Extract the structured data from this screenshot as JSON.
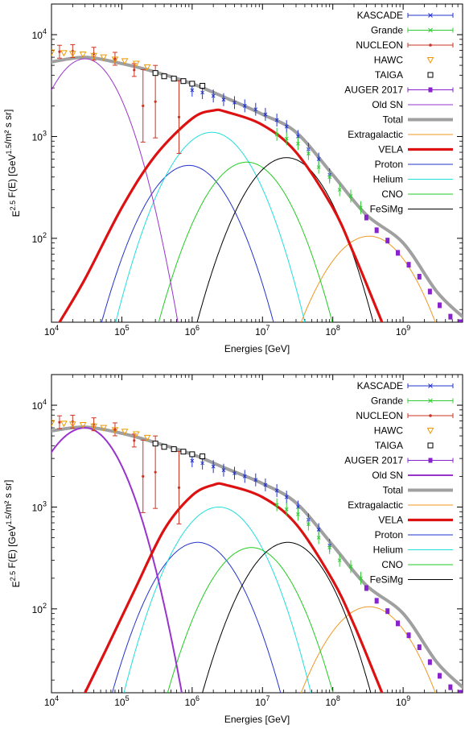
{
  "colors": {
    "KASCADE": "#2233cc",
    "Grande": "#33cc33",
    "NUCLEON": "#cc3322",
    "HAWC": "#ee9900",
    "TAIGA": "#000000",
    "AUGER 2017": "#8822cc",
    "Old SN": "#9933cc",
    "Total": "#a0a0a0",
    "Extragalactic": "#ee9922",
    "VELA": "#dd1111",
    "Proton": "#2233cc",
    "Helium": "#22dddd",
    "CNO": "#22cc22",
    "FeSiMg": "#000000"
  },
  "chart_data": [
    {
      "type": "line",
      "xlabel": "Energies [GeV]",
      "ylabel": "E^{2.5} F(E) [GeV^{1.5}/m² s sr]",
      "x_scale": "log",
      "y_scale": "log",
      "xlim": [
        10000,
        7000000000
      ],
      "ylim": [
        15,
        20000
      ],
      "x_ticks": [
        "10^4",
        "10^5",
        "10^6",
        "10^7",
        "10^8",
        "10^9"
      ],
      "y_ticks": [
        "10^2",
        "10^3",
        "10^4"
      ],
      "legend_position": "top-right",
      "legend": [
        "KASCADE",
        "Grande",
        "NUCLEON",
        "HAWC",
        "TAIGA",
        "AUGER 2017",
        "Old SN",
        "Total",
        "Extragalactic",
        "VELA",
        "Proton",
        "Helium",
        "CNO",
        "FeSiMg"
      ],
      "curves": [
        {
          "name": "Old SN",
          "peak_x": 30000,
          "peak_y": 5800,
          "left_slope": 0.22,
          "right_slope": 1.0,
          "width": 1.35
        },
        {
          "name": "Total",
          "points": [
            [
              10000,
              5400
            ],
            [
              30000,
              6000
            ],
            [
              100000,
              5200
            ],
            [
              300000,
              4300
            ],
            [
              1000000,
              3300
            ],
            [
              3000000,
              2400
            ],
            [
              10000000,
              1650
            ],
            [
              30000000,
              1100
            ],
            [
              100000000,
              420
            ],
            [
              300000000,
              170
            ],
            [
              1000000000,
              90
            ],
            [
              3000000000,
              30
            ],
            [
              7000000000,
              17
            ]
          ]
        },
        {
          "name": "Extragalactic",
          "peak_x": 330000000,
          "peak_y": 105,
          "left_slope": 0.55,
          "right_slope": 0.9,
          "width": 0.9
        },
        {
          "name": "VELA",
          "points": [
            [
              13000,
              15
            ],
            [
              30000,
              40
            ],
            [
              100000,
              200
            ],
            [
              300000,
              650
            ],
            [
              1000000,
              1500
            ],
            [
              2000000,
              1800
            ],
            [
              3000000,
              1750
            ],
            [
              10000000,
              1300
            ],
            [
              30000000,
              700
            ],
            [
              100000000,
              200
            ],
            [
              200000000,
              70
            ],
            [
              400000000,
              22
            ],
            [
              500000000,
              15
            ]
          ]
        },
        {
          "name": "Proton",
          "peak_x": 900000,
          "peak_y": 520,
          "left_slope": 0.55,
          "right_slope": 0.9,
          "width": 1.0
        },
        {
          "name": "Helium",
          "peak_x": 1900000,
          "peak_y": 1100,
          "left_slope": 0.55,
          "right_slope": 0.9,
          "width": 1.0
        },
        {
          "name": "CNO",
          "peak_x": 6000000,
          "peak_y": 560,
          "left_slope": 0.55,
          "right_slope": 0.9,
          "width": 1.0
        },
        {
          "name": "FeSiMg",
          "peak_x": 22000000,
          "peak_y": 620,
          "left_slope": 0.55,
          "right_slope": 0.9,
          "width": 1.0
        }
      ],
      "series": [
        {
          "name": "KASCADE",
          "points": [
            [
              1000000,
              2850
            ],
            [
              1400000,
              2700
            ],
            [
              2000000,
              2500
            ],
            [
              2800000,
              2300
            ],
            [
              4000000,
              2150
            ],
            [
              5600000,
              2000
            ],
            [
              8000000,
              1850
            ],
            [
              11000000,
              1650
            ],
            [
              16000000,
              1450
            ],
            [
              22000000,
              1250
            ],
            [
              32000000,
              1000
            ],
            [
              45000000,
              750
            ],
            [
              63000000,
              600
            ],
            [
              90000000,
              420
            ]
          ]
        },
        {
          "name": "Grande",
          "points": [
            [
              16000000,
              1050
            ],
            [
              22000000,
              950
            ],
            [
              32000000,
              850
            ],
            [
              45000000,
              680
            ],
            [
              63000000,
              500
            ],
            [
              90000000,
              400
            ],
            [
              125000000,
              300
            ],
            [
              180000000,
              260
            ],
            [
              250000000,
              200
            ]
          ]
        },
        {
          "name": "NUCLEON",
          "points": [
            [
              13000,
              6800
            ],
            [
              20000,
              6900
            ],
            [
              40000,
              6500
            ],
            [
              80000,
              5800
            ],
            [
              150000,
              4500
            ],
            [
              200000,
              2000
            ],
            [
              300000,
              2200
            ],
            [
              650000,
              1550
            ]
          ]
        },
        {
          "name": "HAWC",
          "points": [
            [
              10000,
              6700
            ],
            [
              15000,
              6600
            ],
            [
              20000,
              6500
            ],
            [
              28000,
              6400
            ],
            [
              40000,
              6200
            ],
            [
              55000,
              6000
            ],
            [
              80000,
              5700
            ],
            [
              110000,
              5500
            ],
            [
              160000,
              5200
            ],
            [
              230000,
              4800
            ]
          ]
        },
        {
          "name": "TAIGA",
          "points": [
            [
              300000,
              4200
            ],
            [
              400000,
              3900
            ],
            [
              550000,
              3700
            ],
            [
              750000,
              3500
            ],
            [
              1000000,
              3300
            ],
            [
              1400000,
              3150
            ]
          ]
        },
        {
          "name": "AUGER 2017",
          "points": [
            [
              300000000,
              160
            ],
            [
              420000000,
              120
            ],
            [
              600000000,
              95
            ],
            [
              840000000,
              72
            ],
            [
              1200000000,
              55
            ],
            [
              1700000000,
              42
            ],
            [
              2400000000,
              30
            ],
            [
              3300000000,
              22
            ],
            [
              4700000000,
              17
            ],
            [
              6500000000,
              15
            ]
          ]
        }
      ]
    },
    {
      "type": "line",
      "xlabel": "Energies [GeV]",
      "ylabel": "E^{2.5} F(E) [GeV^{1.5}/m² s sr]",
      "x_scale": "log",
      "y_scale": "log",
      "xlim": [
        10000,
        7000000000
      ],
      "ylim": [
        15,
        20000
      ],
      "x_ticks": [
        "10^4",
        "10^5",
        "10^6",
        "10^7",
        "10^8",
        "10^9"
      ],
      "y_ticks": [
        "10^2",
        "10^3",
        "10^4"
      ],
      "legend_position": "top-right",
      "legend": [
        "KASCADE",
        "Grande",
        "NUCLEON",
        "HAWC",
        "TAIGA",
        "AUGER 2017",
        "Old SN",
        "Total",
        "Extragalactic",
        "VELA",
        "Proton",
        "Helium",
        "CNO",
        "FeSiMg"
      ],
      "curves": [
        {
          "name": "Old SN",
          "peak_x": 30000,
          "peak_y": 6000,
          "left_slope": 0.22,
          "right_slope": 1.6,
          "width": 1.05
        },
        {
          "name": "Total",
          "points": [
            [
              10000,
              5600
            ],
            [
              30000,
              6100
            ],
            [
              100000,
              5300
            ],
            [
              300000,
              4300
            ],
            [
              1000000,
              3300
            ],
            [
              3000000,
              2400
            ],
            [
              10000000,
              1700
            ],
            [
              30000000,
              1100
            ],
            [
              100000000,
              420
            ],
            [
              300000000,
              170
            ],
            [
              1000000000,
              90
            ],
            [
              3000000000,
              30
            ],
            [
              7000000000,
              17
            ]
          ]
        },
        {
          "name": "Extragalactic",
          "peak_x": 330000000,
          "peak_y": 105,
          "left_slope": 0.55,
          "right_slope": 0.9,
          "width": 0.9
        },
        {
          "name": "VELA",
          "points": [
            [
              30000,
              15
            ],
            [
              60000,
              40
            ],
            [
              150000,
              150
            ],
            [
              400000,
              600
            ],
            [
              1000000,
              1300
            ],
            [
              2000000,
              1650
            ],
            [
              3000000,
              1650
            ],
            [
              10000000,
              1250
            ],
            [
              30000000,
              680
            ],
            [
              100000000,
              190
            ],
            [
              200000000,
              70
            ],
            [
              400000000,
              22
            ],
            [
              500000000,
              15
            ]
          ]
        },
        {
          "name": "Proton",
          "peak_x": 1200000,
          "peak_y": 450,
          "left_slope": 0.55,
          "right_slope": 0.9,
          "width": 1.0
        },
        {
          "name": "Helium",
          "peak_x": 2400000,
          "peak_y": 1000,
          "left_slope": 0.55,
          "right_slope": 0.9,
          "width": 1.0
        },
        {
          "name": "CNO",
          "peak_x": 7000000,
          "peak_y": 400,
          "left_slope": 0.55,
          "right_slope": 0.9,
          "width": 1.0
        },
        {
          "name": "FeSiMg",
          "peak_x": 23000000,
          "peak_y": 450,
          "left_slope": 0.55,
          "right_slope": 0.9,
          "width": 1.0
        }
      ],
      "series": [
        {
          "name": "KASCADE",
          "points": [
            [
              1000000,
              2850
            ],
            [
              1400000,
              2700
            ],
            [
              2000000,
              2500
            ],
            [
              2800000,
              2300
            ],
            [
              4000000,
              2150
            ],
            [
              5600000,
              2000
            ],
            [
              8000000,
              1850
            ],
            [
              11000000,
              1650
            ],
            [
              16000000,
              1450
            ],
            [
              22000000,
              1250
            ],
            [
              32000000,
              1000
            ],
            [
              45000000,
              750
            ],
            [
              63000000,
              600
            ],
            [
              90000000,
              420
            ]
          ]
        },
        {
          "name": "Grande",
          "points": [
            [
              16000000,
              1050
            ],
            [
              22000000,
              950
            ],
            [
              32000000,
              850
            ],
            [
              45000000,
              680
            ],
            [
              63000000,
              500
            ],
            [
              90000000,
              400
            ],
            [
              125000000,
              300
            ],
            [
              180000000,
              260
            ],
            [
              250000000,
              200
            ]
          ]
        },
        {
          "name": "NUCLEON",
          "points": [
            [
              13000,
              6800
            ],
            [
              20000,
              6900
            ],
            [
              40000,
              6500
            ],
            [
              80000,
              5800
            ],
            [
              150000,
              4500
            ],
            [
              200000,
              2000
            ],
            [
              300000,
              2200
            ],
            [
              650000,
              1550
            ]
          ]
        },
        {
          "name": "HAWC",
          "points": [
            [
              10000,
              6700
            ],
            [
              15000,
              6600
            ],
            [
              20000,
              6500
            ],
            [
              28000,
              6400
            ],
            [
              40000,
              6200
            ],
            [
              55000,
              6000
            ],
            [
              80000,
              5700
            ],
            [
              110000,
              5500
            ],
            [
              160000,
              5200
            ],
            [
              230000,
              4800
            ]
          ]
        },
        {
          "name": "TAIGA",
          "points": [
            [
              300000,
              4200
            ],
            [
              400000,
              3900
            ],
            [
              550000,
              3700
            ],
            [
              750000,
              3500
            ],
            [
              1000000,
              3300
            ],
            [
              1400000,
              3150
            ]
          ]
        },
        {
          "name": "AUGER 2017",
          "points": [
            [
              300000000,
              160
            ],
            [
              420000000,
              120
            ],
            [
              600000000,
              95
            ],
            [
              840000000,
              72
            ],
            [
              1200000000,
              55
            ],
            [
              1700000000,
              42
            ],
            [
              2400000000,
              30
            ],
            [
              3300000000,
              22
            ],
            [
              4700000000,
              17
            ],
            [
              6500000000,
              15
            ]
          ]
        }
      ]
    }
  ]
}
